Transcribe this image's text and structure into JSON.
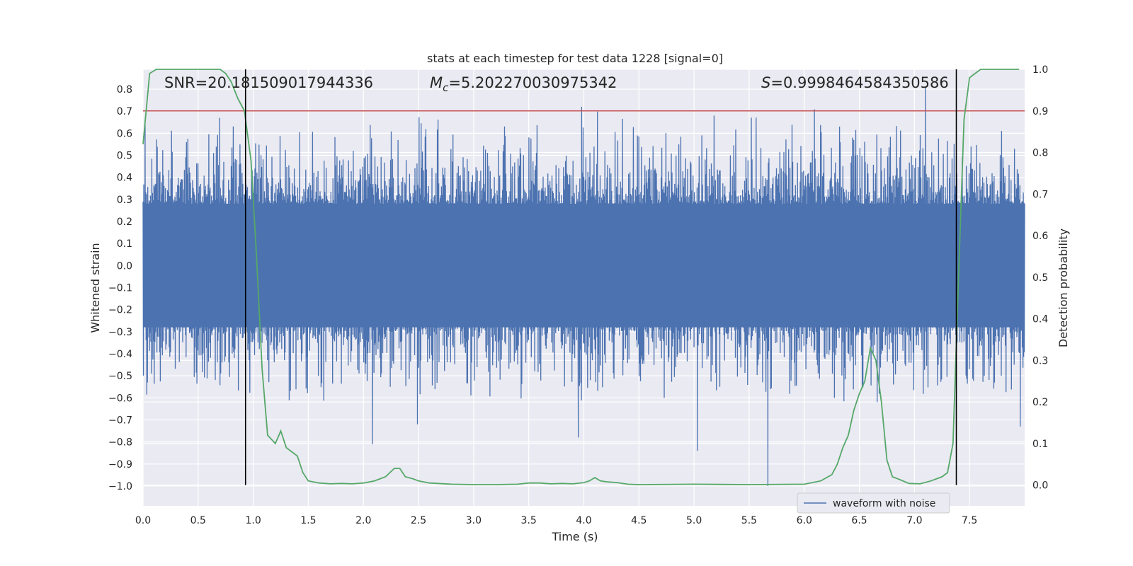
{
  "chart_data": {
    "type": "line",
    "title": "stats at each timestep for test data 1228 [signal=0]",
    "xlabel": "Time (s)",
    "ylabel": "Whitened strain",
    "y2label": "Detection probability",
    "xlim": [
      0.0,
      8.0
    ],
    "ylim": [
      -1.09,
      0.89
    ],
    "y2lim": [
      -0.05,
      1.0
    ],
    "xticks": [
      0.0,
      0.5,
      1.0,
      1.5,
      2.0,
      2.5,
      3.0,
      3.5,
      4.0,
      4.5,
      5.0,
      5.5,
      6.0,
      6.5,
      7.0,
      7.5
    ],
    "xtick_labels": [
      "0.0",
      "0.5",
      "1.0",
      "1.5",
      "2.0",
      "2.5",
      "3.0",
      "3.5",
      "4.0",
      "4.5",
      "5.0",
      "5.5",
      "6.0",
      "6.5",
      "7.0",
      "7.5"
    ],
    "yticks": [
      0.8,
      0.7,
      0.6,
      0.5,
      0.4,
      0.3,
      0.2,
      0.1,
      0.0,
      -0.1,
      -0.2,
      -0.3,
      -0.4,
      -0.5,
      -0.6,
      -0.7,
      -0.8,
      -0.9,
      -1.0
    ],
    "ytick_labels": [
      "0.8",
      "0.7",
      "0.6",
      "0.5",
      "0.4",
      "0.3",
      "0.2",
      "0.1",
      "0.0",
      "−0.1",
      "−0.2",
      "−0.3",
      "−0.4",
      "−0.5",
      "−0.6",
      "−0.7",
      "−0.8",
      "−0.9",
      "−1.0"
    ],
    "y2ticks": [
      1.0,
      0.9,
      0.8,
      0.7,
      0.6,
      0.5,
      0.4,
      0.3,
      0.2,
      0.1,
      0.0
    ],
    "y2tick_labels": [
      "1.0",
      "0.9",
      "0.8",
      "0.7",
      "0.6",
      "0.5",
      "0.4",
      "0.3",
      "0.2",
      "0.1",
      "0.0"
    ],
    "grid": true,
    "annotations": {
      "snr": "SNR=20.181509017944336",
      "mc_symbol": "M",
      "mc_subscript": "c",
      "mc_value": "=5.202270030975342",
      "s_symbol": "S",
      "s_value": "=0.9998464584350586"
    },
    "threshold_probability": 0.9,
    "event_window_times": [
      0.93,
      7.38
    ],
    "legend": {
      "label": "waveform with noise",
      "position": "lower-right"
    },
    "series": [
      {
        "name": "waveform with noise",
        "axis": "left",
        "color": "#4c72b0",
        "style": "dense-noise",
        "duration_s": 8.0,
        "envelope_core": 0.28,
        "typical_peak_range": [
          -0.62,
          0.72
        ],
        "extremes": [
          {
            "t": 5.67,
            "value": -1.0
          },
          {
            "t": 7.1,
            "value": 0.81
          },
          {
            "t": 3.98,
            "value": 0.72
          },
          {
            "t": 5.03,
            "value": -0.84
          },
          {
            "t": 2.08,
            "value": -0.81
          },
          {
            "t": 3.95,
            "value": -0.78
          },
          {
            "t": 7.96,
            "value": -0.73
          },
          {
            "t": 2.49,
            "value": -0.72
          }
        ]
      },
      {
        "name": "Detection probability",
        "axis": "right",
        "color": "#55a868",
        "x": [
          0.0,
          0.06,
          0.12,
          0.2,
          0.3,
          0.4,
          0.5,
          0.6,
          0.7,
          0.75,
          0.8,
          0.86,
          0.92,
          0.98,
          1.03,
          1.08,
          1.13,
          1.2,
          1.25,
          1.3,
          1.35,
          1.4,
          1.45,
          1.5,
          1.6,
          1.7,
          1.8,
          1.9,
          2.0,
          2.1,
          2.2,
          2.28,
          2.33,
          2.38,
          2.45,
          2.5,
          2.6,
          2.8,
          3.0,
          3.2,
          3.4,
          3.5,
          3.6,
          3.7,
          3.8,
          3.9,
          4.0,
          4.05,
          4.1,
          4.15,
          4.2,
          4.3,
          4.4,
          4.5,
          5.0,
          5.5,
          6.0,
          6.15,
          6.25,
          6.3,
          6.35,
          6.4,
          6.45,
          6.5,
          6.55,
          6.6,
          6.65,
          6.7,
          6.75,
          6.8,
          6.85,
          6.95,
          7.05,
          7.15,
          7.25,
          7.3,
          7.35,
          7.4,
          7.45,
          7.5,
          7.6,
          7.8,
          7.95
        ],
        "y": [
          0.82,
          0.99,
          1.0,
          1.0,
          1.0,
          1.0,
          1.0,
          1.0,
          1.0,
          0.99,
          0.97,
          0.93,
          0.9,
          0.78,
          0.55,
          0.28,
          0.12,
          0.1,
          0.13,
          0.09,
          0.08,
          0.07,
          0.03,
          0.01,
          0.005,
          0.003,
          0.004,
          0.003,
          0.005,
          0.01,
          0.02,
          0.04,
          0.04,
          0.02,
          0.015,
          0.01,
          0.005,
          0.002,
          0.001,
          0.001,
          0.002,
          0.005,
          0.005,
          0.003,
          0.004,
          0.003,
          0.006,
          0.01,
          0.018,
          0.01,
          0.008,
          0.006,
          0.002,
          0.001,
          0.002,
          0.001,
          0.002,
          0.01,
          0.025,
          0.05,
          0.09,
          0.12,
          0.18,
          0.22,
          0.25,
          0.33,
          0.3,
          0.2,
          0.06,
          0.02,
          0.015,
          0.004,
          0.003,
          0.01,
          0.02,
          0.03,
          0.1,
          0.5,
          0.88,
          0.98,
          1.0,
          1.0,
          1.0
        ]
      }
    ]
  }
}
